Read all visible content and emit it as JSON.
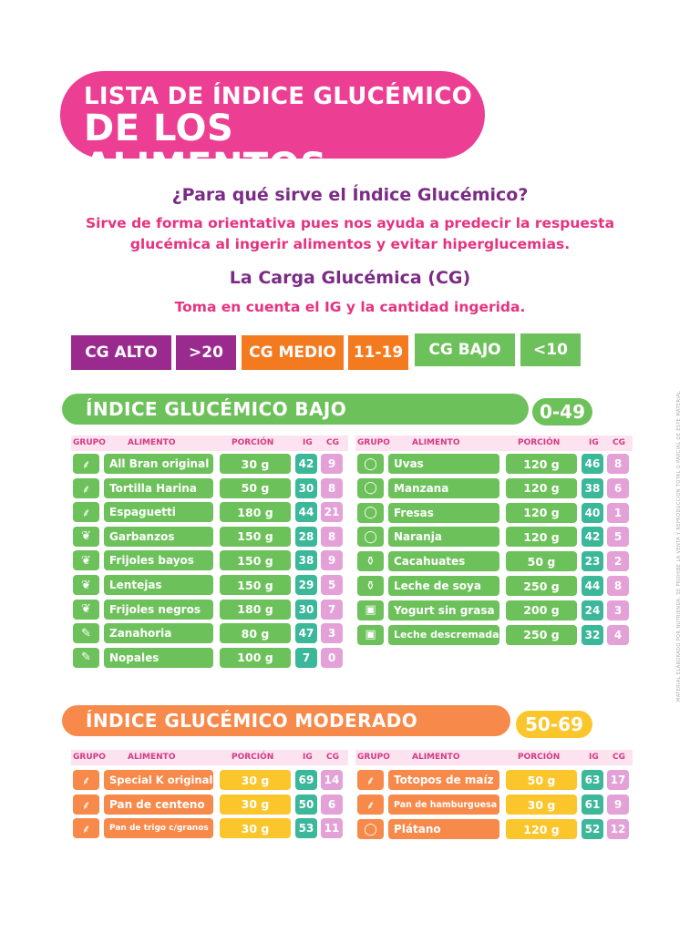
{
  "title": {
    "line1": "LISTA DE ÍNDICE GLUCÉMICO",
    "line2": "DE LOS ALIMENTOS"
  },
  "question1": "¿Para qué sirve el Índice Glucémico?",
  "answer1_line1": "Sirve de forma orientativa pues nos ayuda a predecir la respuesta",
  "answer1_line2": "glucémica al ingerir alimentos y evitar hiperglucemias.",
  "question2": "La Carga Glucémica (CG)",
  "answer2": "Toma en cuenta el IG y la cantidad ingerida.",
  "legend": [
    {
      "label": "CG ALTO",
      "color": "#9b2a8f"
    },
    {
      "label": ">20",
      "color": "#9b2a8f"
    },
    {
      "label": "CG MEDIO",
      "color": "#f47a20"
    },
    {
      "label": "11-19",
      "color": "#f47a20"
    },
    {
      "label": "CG BAJO",
      "color": "#6dc15a"
    },
    {
      "label": "<10",
      "color": "#6dc15a"
    }
  ],
  "headers": {
    "grupo": "GRUPO",
    "alimento": "ALIMENTO",
    "porcion": "PORCIÓN",
    "ig": "IG",
    "cg": "CG"
  },
  "low": {
    "title": "ÍNDICE GLUCÉMICO BAJO",
    "range": "0-49",
    "left": [
      {
        "icon": "wheat-icon",
        "glyph": "⸙",
        "name": "All Bran original",
        "portion": "30 g",
        "ig": "42",
        "cg": "9"
      },
      {
        "icon": "wheat-icon",
        "glyph": "⸙",
        "name": "Tortilla Harina",
        "portion": "50 g",
        "ig": "30",
        "cg": "8"
      },
      {
        "icon": "wheat-icon",
        "glyph": "⸙",
        "name": "Espaguetti",
        "portion": "180 g",
        "ig": "44",
        "cg": "21"
      },
      {
        "icon": "bean-icon",
        "glyph": "❦",
        "name": "Garbanzos",
        "portion": "150 g",
        "ig": "28",
        "cg": "8"
      },
      {
        "icon": "bean-icon",
        "glyph": "❦",
        "name": "Frijoles bayos",
        "portion": "150 g",
        "ig": "38",
        "cg": "9"
      },
      {
        "icon": "bean-icon",
        "glyph": "❦",
        "name": "Lentejas",
        "portion": "150 g",
        "ig": "29",
        "cg": "5"
      },
      {
        "icon": "bean-icon",
        "glyph": "❦",
        "name": "Frijoles negros",
        "portion": "180 g",
        "ig": "30",
        "cg": "7"
      },
      {
        "icon": "carrot-icon",
        "glyph": "✎",
        "name": "Zanahoria",
        "portion": "80 g",
        "ig": "47",
        "cg": "3"
      },
      {
        "icon": "carrot-icon",
        "glyph": "✎",
        "name": "Nopales",
        "portion": "100 g",
        "ig": "7",
        "cg": "0"
      }
    ],
    "right": [
      {
        "icon": "apple-icon",
        "glyph": "◯",
        "name": "Uvas",
        "portion": "120 g",
        "ig": "46",
        "cg": "8"
      },
      {
        "icon": "apple-icon",
        "glyph": "◯",
        "name": "Manzana",
        "portion": "120 g",
        "ig": "38",
        "cg": "6"
      },
      {
        "icon": "apple-icon",
        "glyph": "◯",
        "name": "Fresas",
        "portion": "120 g",
        "ig": "40",
        "cg": "1"
      },
      {
        "icon": "apple-icon",
        "glyph": "◯",
        "name": "Naranja",
        "portion": "120 g",
        "ig": "42",
        "cg": "5"
      },
      {
        "icon": "bottle-icon",
        "glyph": "⚱",
        "name": "Cacahuates",
        "portion": "50 g",
        "ig": "23",
        "cg": "2"
      },
      {
        "icon": "bottle-icon",
        "glyph": "⚱",
        "name": "Leche de soya",
        "portion": "250 g",
        "ig": "44",
        "cg": "8"
      },
      {
        "icon": "yogurt-icon",
        "glyph": "▣",
        "name": "Yogurt sin grasa",
        "portion": "200 g",
        "ig": "24",
        "cg": "3"
      },
      {
        "icon": "yogurt-icon",
        "glyph": "▣",
        "name": "Leche descremada",
        "portion": "250 g",
        "ig": "32",
        "cg": "4"
      }
    ]
  },
  "moderate": {
    "title": "ÍNDICE GLUCÉMICO MODERADO",
    "range": "50-69",
    "left": [
      {
        "icon": "wheat-icon",
        "glyph": "⸙",
        "name": "Special K original",
        "portion": "30 g",
        "ig": "69",
        "cg": "14"
      },
      {
        "icon": "wheat-icon",
        "glyph": "⸙",
        "name": "Pan de centeno",
        "portion": "30 g",
        "ig": "50",
        "cg": "6"
      },
      {
        "icon": "wheat-icon",
        "glyph": "⸙",
        "name": "Pan de trigo c/granos",
        "portion": "30 g",
        "ig": "53",
        "cg": "11"
      }
    ],
    "right": [
      {
        "icon": "wheat-icon",
        "glyph": "⸙",
        "name": "Totopos de maíz",
        "portion": "50 g",
        "ig": "63",
        "cg": "17"
      },
      {
        "icon": "wheat-icon",
        "glyph": "⸙",
        "name": "Pan de hamburguesa",
        "portion": "30 g",
        "ig": "61",
        "cg": "9"
      },
      {
        "icon": "apple-icon",
        "glyph": "◯",
        "name": "Plátano",
        "portion": "120 g",
        "ig": "52",
        "cg": "12"
      }
    ]
  },
  "side_note": "MATERIAL ELABORADO POR NUTRIENDA. SE PROHÍBE LA VENTA Y REPRODUCCIÓN TOTAL O PARCIAL DE ESTE MATERIAL"
}
